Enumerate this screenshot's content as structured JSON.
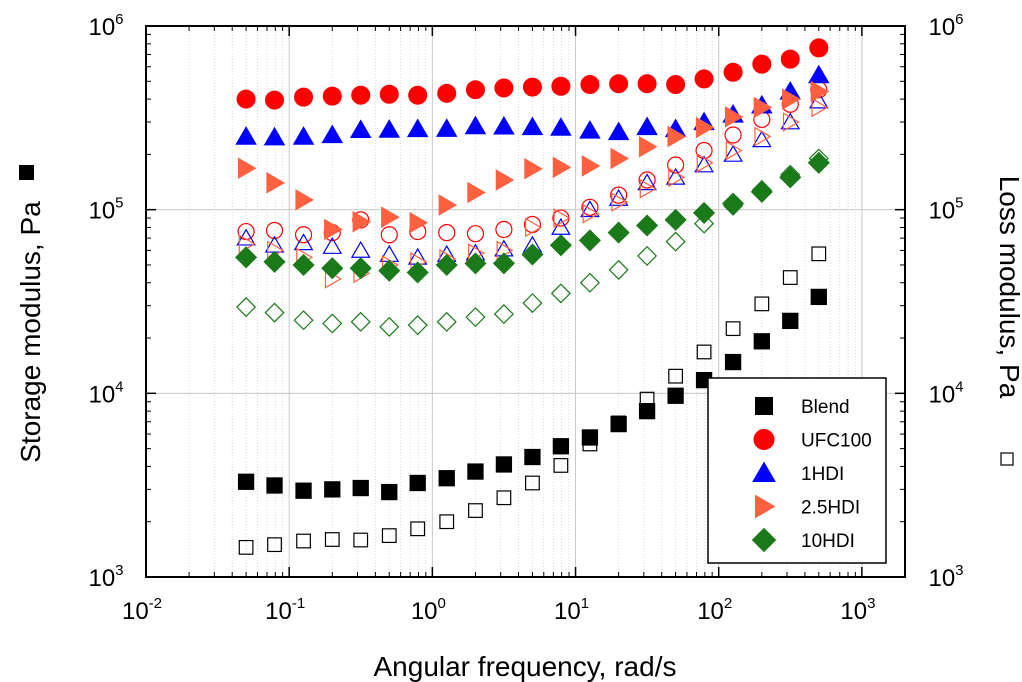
{
  "chart_data": {
    "type": "scatter",
    "xlabel": "Angular frequency, rad/s",
    "ylabel_left": "Storage modulus, Pa",
    "ylabel_right": "Loss modulus, Pa",
    "xscale": "log",
    "yscale": "log",
    "xlim": [
      0.01,
      2000
    ],
    "ylim": [
      1000,
      1000000
    ],
    "x_ticks": [
      {
        "base": "10",
        "exp": "-2",
        "value": 0.01
      },
      {
        "base": "10",
        "exp": "-1",
        "value": 0.1
      },
      {
        "base": "10",
        "exp": "0",
        "value": 1
      },
      {
        "base": "10",
        "exp": "1",
        "value": 10
      },
      {
        "base": "10",
        "exp": "2",
        "value": 100
      },
      {
        "base": "10",
        "exp": "3",
        "value": 1000
      }
    ],
    "y_ticks": [
      {
        "base": "10",
        "exp": "3",
        "value": 1000
      },
      {
        "base": "10",
        "exp": "4",
        "value": 10000
      },
      {
        "base": "10",
        "exp": "5",
        "value": 100000
      },
      {
        "base": "10",
        "exp": "6",
        "value": 1000000
      }
    ],
    "grid": true,
    "legend_position": "bottom-right",
    "left_axis_marker": "filled square",
    "right_axis_marker": "open square",
    "x": [
      0.05,
      0.079,
      0.126,
      0.2,
      0.316,
      0.5,
      0.79,
      1.26,
      2.0,
      3.16,
      5.0,
      7.9,
      12.6,
      20,
      31.6,
      50,
      79,
      126,
      200,
      316,
      500
    ],
    "series": [
      {
        "name": "Blend",
        "marker": "square",
        "color": "#000000",
        "storage": [
          3300,
          3150,
          2950,
          3000,
          3050,
          2900,
          3250,
          3450,
          3750,
          4100,
          4500,
          5150,
          5750,
          6800,
          8000,
          9700,
          11800,
          14800,
          19200,
          24800,
          33500
        ],
        "loss": [
          1450,
          1500,
          1570,
          1600,
          1590,
          1680,
          1830,
          2000,
          2300,
          2700,
          3250,
          4050,
          5300,
          6900,
          9300,
          12400,
          16800,
          22500,
          30700,
          42700,
          57500
        ]
      },
      {
        "name": "UFC100",
        "marker": "circle",
        "color": "#ff0000",
        "storage": [
          400000,
          395000,
          410000,
          415000,
          420000,
          425000,
          420000,
          430000,
          450000,
          460000,
          465000,
          470000,
          480000,
          485000,
          485000,
          480000,
          515000,
          560000,
          620000,
          660000,
          760000
        ],
        "loss": [
          76000,
          77000,
          73000,
          75000,
          88000,
          73000,
          76000,
          75000,
          74000,
          78000,
          83000,
          90000,
          103000,
          120000,
          145000,
          175000,
          210000,
          255000,
          310000,
          375000,
          450000
        ]
      },
      {
        "name": "1HDI",
        "marker": "triangle-up",
        "color": "#0000ff",
        "storage": [
          250000,
          248000,
          250000,
          255000,
          272000,
          273000,
          275000,
          276000,
          285000,
          284000,
          282000,
          280000,
          270000,
          265000,
          282000,
          275000,
          300000,
          330000,
          370000,
          440000,
          540000
        ],
        "loss": [
          70000,
          64000,
          66000,
          63000,
          60000,
          57000,
          55000,
          57000,
          58000,
          61000,
          64000,
          80000,
          100000,
          115000,
          140000,
          150000,
          175000,
          200000,
          240000,
          300000,
          390000
        ]
      },
      {
        "name": "2.5HDI",
        "marker": "triangle-right",
        "color": "#ff6040",
        "storage": [
          168000,
          140000,
          113000,
          78000,
          86000,
          91000,
          85000,
          106000,
          124000,
          145000,
          167000,
          170000,
          173000,
          190000,
          220000,
          250000,
          280000,
          320000,
          360000,
          400000,
          440000
        ],
        "loss": [
          65000,
          60000,
          55000,
          42000,
          45000,
          50000,
          52000,
          54000,
          58000,
          60000,
          80000,
          90000,
          95000,
          110000,
          130000,
          150000,
          180000,
          210000,
          250000,
          300000,
          360000
        ]
      },
      {
        "name": "10HDI",
        "marker": "diamond",
        "color": "#1a7a1a",
        "storage": [
          55000,
          52000,
          50000,
          48000,
          48000,
          46500,
          45500,
          50000,
          51000,
          51000,
          57000,
          64000,
          68000,
          75000,
          82000,
          88000,
          96000,
          108000,
          125000,
          150000,
          180000
        ],
        "loss": [
          29500,
          27500,
          25000,
          24000,
          24500,
          23000,
          23500,
          24500,
          26000,
          27000,
          31000,
          35000,
          40000,
          47000,
          56000,
          67000,
          84000,
          105000,
          128000,
          155000,
          190000
        ]
      }
    ]
  }
}
